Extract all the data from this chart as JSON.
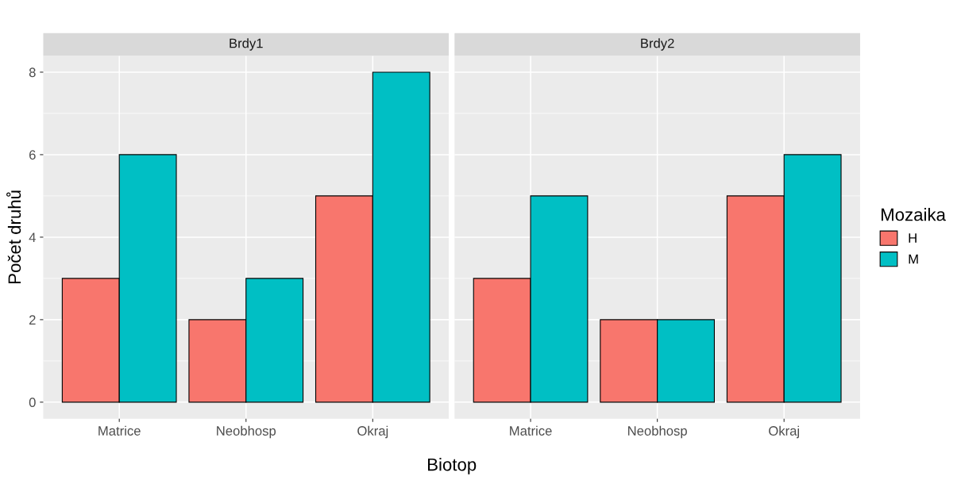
{
  "chart_data": [
    {
      "type": "bar",
      "title": "Brdy1",
      "xlabel": "Biotop",
      "ylabel": "Počet druhů",
      "categories": [
        "Matrice",
        "Neobhosp",
        "Okraj"
      ],
      "series": [
        {
          "color": "#f8766d",
          "values": [
            3,
            2,
            5
          ]
        },
        {
          "color": "#00bfc4",
          "values": [
            6,
            3,
            8
          ]
        }
      ],
      "ylim": [
        -0.4,
        8.4
      ],
      "yticks": [
        0,
        2,
        4,
        6,
        8
      ],
      "grid": true
    },
    {
      "type": "bar",
      "title": "Brdy2",
      "legend_title": "Mozaika",
      "categories": [
        "Matrice",
        "Neobhosp",
        "Okraj"
      ],
      "series": [
        {
          "name": "H",
          "color": "#f8766d",
          "values": [
            3,
            2,
            5
          ]
        },
        {
          "name": "M",
          "color": "#00bfc4",
          "values": [
            5,
            2,
            6
          ]
        }
      ],
      "ylim": [
        -0.4,
        8.4
      ],
      "yticks": [
        0,
        2,
        4,
        6,
        8
      ],
      "grid": true,
      "legend": "right",
      "tick_labels": "x"
    }
  ]
}
